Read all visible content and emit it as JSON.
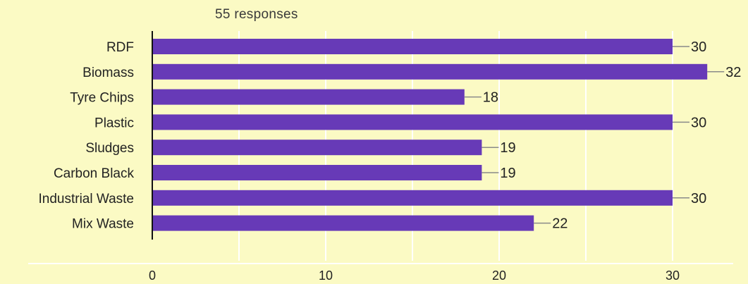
{
  "chart_data": {
    "type": "bar",
    "orientation": "horizontal",
    "subtitle": "55 responses",
    "categories": [
      "RDF",
      "Biomass",
      "Tyre Chips",
      "Plastic",
      "Sludges",
      "Carbon Black",
      "Industrial Waste",
      "Mix Waste"
    ],
    "values": [
      30,
      32,
      18,
      30,
      19,
      19,
      30,
      22
    ],
    "xticks": [
      0,
      10,
      20,
      30
    ],
    "xlim": [
      0,
      33
    ],
    "grid": true,
    "legend": "none",
    "bar_color": "#673ab7",
    "background_color": "#fbfac4"
  }
}
